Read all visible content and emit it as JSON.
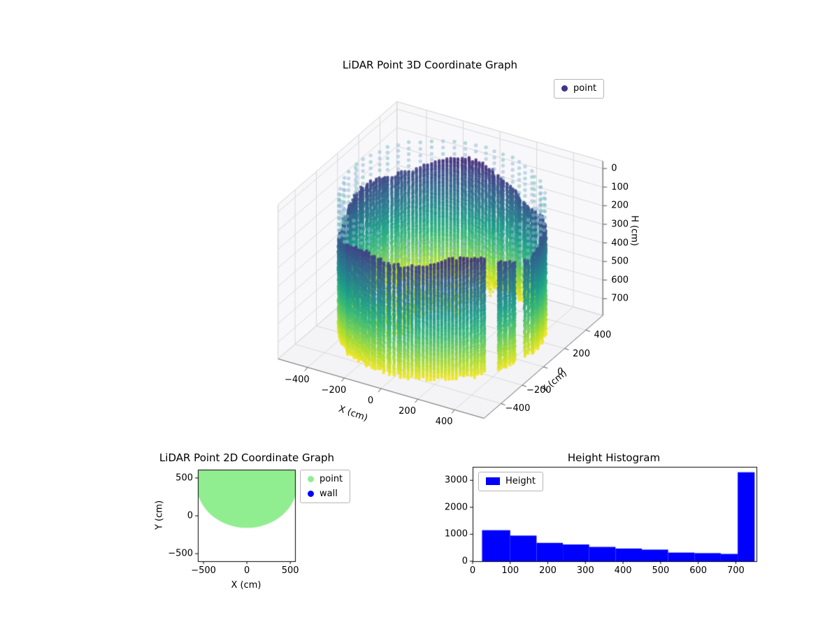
{
  "figure": {
    "background": "#ffffff"
  },
  "chart_data": [
    {
      "type": "scatter3d",
      "title": "LiDAR Point 3D Coordinate Graph",
      "xlabel": "X (cm)",
      "ylabel": "Y (cm)",
      "zlabel": "H (cm)",
      "xticks": [
        -400,
        -200,
        0,
        200,
        400
      ],
      "yticks": [
        -400,
        -200,
        0,
        200,
        400
      ],
      "zticks": [
        0,
        100,
        200,
        300,
        400,
        500,
        600,
        700
      ],
      "xlim": [
        -560,
        560
      ],
      "ylim": [
        -560,
        560
      ],
      "zlim": [
        0,
        750
      ],
      "z_axis_inverted": true,
      "grid": true,
      "legend": [
        {
          "label": "point",
          "color": "#3f3687"
        }
      ],
      "colormap": "viridis",
      "cloud": {
        "shape": "cylindrical wall point cloud",
        "radius_cm": 480,
        "wall_top_H_cm": [
          140,
          265
        ],
        "wall_bottom_H_cm": 750,
        "color_by": "height: dark purple at low H (top) to yellow at high H (bottom)",
        "sparse_upper_columns": {
          "H_range": [
            0,
            200
          ],
          "colors": [
            "#96b8dc",
            "#7dbfc0"
          ]
        },
        "floor_noise_H_cm": [
          655,
          750
        ]
      }
    },
    {
      "type": "scatter",
      "title": "LiDAR Point 2D Coordinate Graph",
      "xlabel": "X (cm)",
      "ylabel": "Y (cm)",
      "xticks": [
        -500,
        0,
        500
      ],
      "yticks": [
        500,
        0,
        -500
      ],
      "xlim": [
        -565,
        555
      ],
      "ylim": [
        -600,
        610
      ],
      "legend": [
        {
          "label": "point",
          "color": "#90ee90"
        },
        {
          "label": "wall",
          "color": "#0000ff"
        }
      ],
      "region": {
        "description": "dense disk of scanned points",
        "center": [
          0,
          420
        ],
        "radius_cm": 580,
        "color": "#90ee90"
      }
    },
    {
      "type": "bar",
      "title": "Height Histogram",
      "legend": [
        {
          "label": "Height",
          "color": "#0000ff"
        }
      ],
      "xticks": [
        0,
        100,
        200,
        300,
        400,
        500,
        600,
        700
      ],
      "yticks": [
        0,
        1000,
        2000,
        3000
      ],
      "xlim": [
        0,
        755
      ],
      "ylim": [
        0,
        3500
      ],
      "bar_color": "#0000ff",
      "bins": [
        {
          "start": 25,
          "end": 100,
          "count": 1150
        },
        {
          "start": 100,
          "end": 170,
          "count": 950
        },
        {
          "start": 170,
          "end": 240,
          "count": 680
        },
        {
          "start": 240,
          "end": 310,
          "count": 620
        },
        {
          "start": 310,
          "end": 380,
          "count": 530
        },
        {
          "start": 380,
          "end": 450,
          "count": 470
        },
        {
          "start": 450,
          "end": 520,
          "count": 430
        },
        {
          "start": 520,
          "end": 590,
          "count": 320
        },
        {
          "start": 590,
          "end": 660,
          "count": 300
        },
        {
          "start": 660,
          "end": 705,
          "count": 270
        },
        {
          "start": 705,
          "end": 750,
          "count": 3300
        }
      ]
    }
  ]
}
